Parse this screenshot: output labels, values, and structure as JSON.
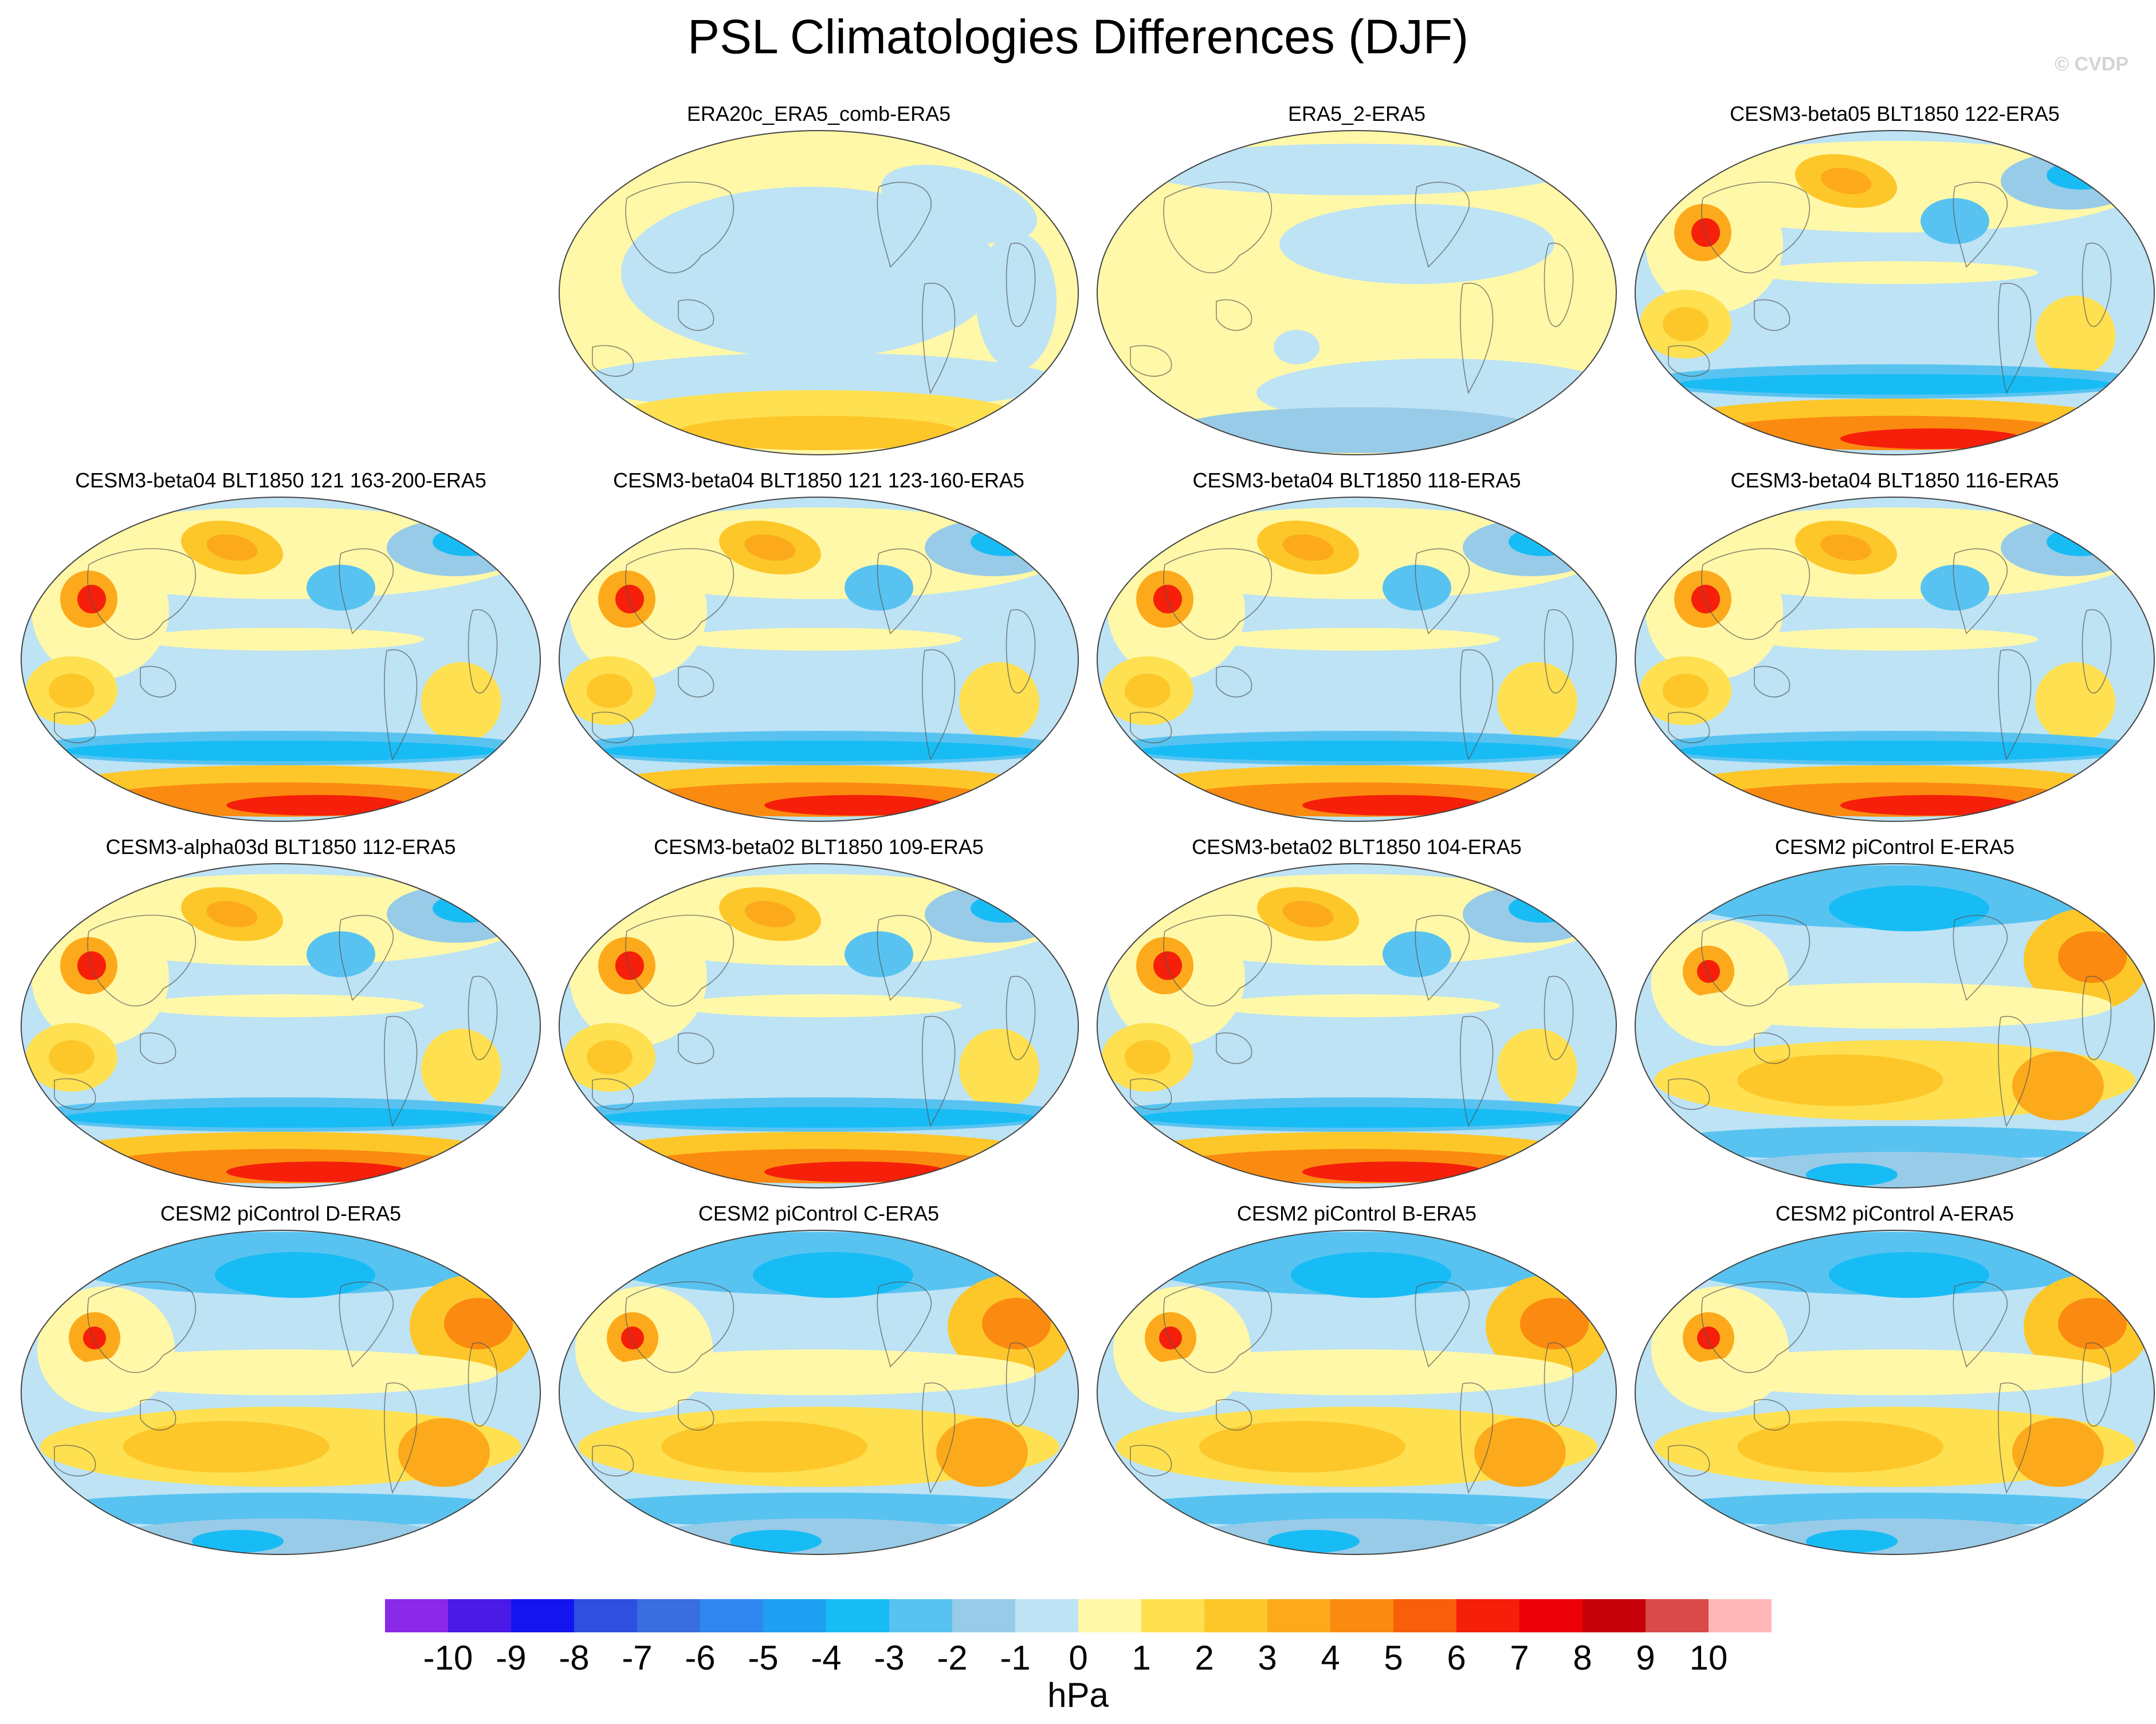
{
  "title": "PSL Climatologies Differences (DJF)",
  "watermark": "© CVDP",
  "units": "hPa",
  "panels": [
    {
      "label": "ERA20c_ERA5_comb-ERA5",
      "pattern": "weak-reanalysis-a"
    },
    {
      "label": "ERA5_2-ERA5",
      "pattern": "weak-reanalysis-b"
    },
    {
      "label": "CESM3-beta05 BLT1850 122-ERA5",
      "pattern": "cesm3"
    },
    {
      "label": "CESM3-beta04 BLT1850 121 163-200-ERA5",
      "pattern": "cesm3"
    },
    {
      "label": "CESM3-beta04 BLT1850 121 123-160-ERA5",
      "pattern": "cesm3"
    },
    {
      "label": "CESM3-beta04 BLT1850 118-ERA5",
      "pattern": "cesm3"
    },
    {
      "label": "CESM3-beta04 BLT1850 116-ERA5",
      "pattern": "cesm3"
    },
    {
      "label": "CESM3-alpha03d BLT1850 112-ERA5",
      "pattern": "cesm3"
    },
    {
      "label": "CESM3-beta02 BLT1850 109-ERA5",
      "pattern": "cesm3"
    },
    {
      "label": "CESM3-beta02 BLT1850 104-ERA5",
      "pattern": "cesm3"
    },
    {
      "label": "CESM2 piControl E-ERA5",
      "pattern": "cesm2"
    },
    {
      "label": "CESM2 piControl D-ERA5",
      "pattern": "cesm2"
    },
    {
      "label": "CESM2 piControl C-ERA5",
      "pattern": "cesm2"
    },
    {
      "label": "CESM2 piControl B-ERA5",
      "pattern": "cesm2"
    },
    {
      "label": "CESM2 piControl A-ERA5",
      "pattern": "cesm2"
    }
  ],
  "colorbar": {
    "labels": [
      "-10",
      "-9",
      "-8",
      "-7",
      "-6",
      "-5",
      "-4",
      "-3",
      "-2",
      "-1",
      "0",
      "1",
      "2",
      "3",
      "4",
      "5",
      "6",
      "7",
      "8",
      "9",
      "10"
    ],
    "colors": [
      "#8a2ae8",
      "#4b1ae6",
      "#1414f0",
      "#2e4fe0",
      "#3a6de0",
      "#2f86ee",
      "#1ea0f2",
      "#18bcf5",
      "#58c3f0",
      "#98cbe8",
      "#bde3f5",
      "#fff8a8",
      "#fee050",
      "#fdc72a",
      "#fcaa1c",
      "#fb8a10",
      "#f85f0b",
      "#f51f0a",
      "#ee0008",
      "#c60008",
      "#da4a4a",
      "#ffb8b8"
    ]
  }
}
